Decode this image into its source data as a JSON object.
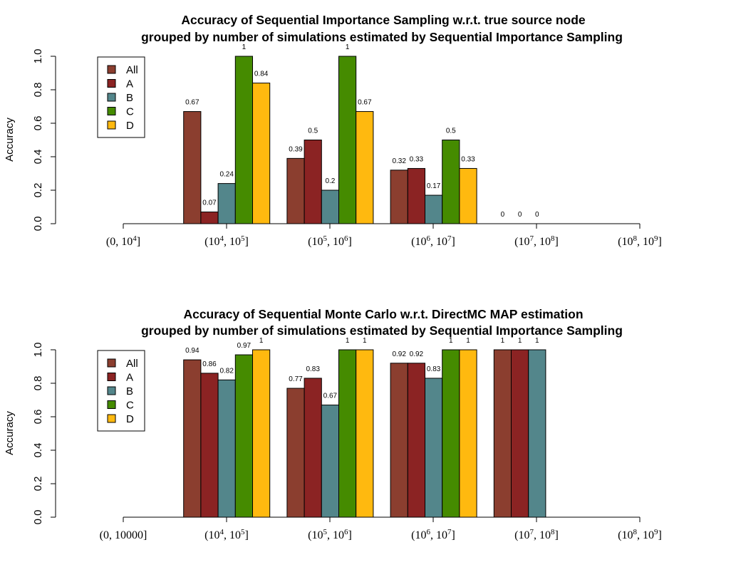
{
  "colors": {
    "All": "#8B3E2F",
    "A": "#8B2323",
    "B": "#53868B",
    "C": "#458B00",
    "D": "#FFB90F"
  },
  "chart_data": [
    {
      "type": "bar",
      "title_line1": "Accuracy of Sequential Importance Sampling w.r.t. true source node",
      "title_line2": "grouped by number of simulations estimated by Sequential Importance Sampling",
      "ylabel": "Accuracy",
      "ylim": [
        0,
        1
      ],
      "yticks": [
        "0.0",
        "0.2",
        "0.4",
        "0.6",
        "0.8",
        "1.0"
      ],
      "categories": [
        {
          "base": "(0, 10",
          "sup1": "4",
          "end": "]",
          "plain": ""
        },
        {
          "base": "(10",
          "sup1": "4",
          "mid": ", 10",
          "sup2": "5",
          "end": "]"
        },
        {
          "base": "(10",
          "sup1": "5",
          "mid": ", 10",
          "sup2": "6",
          "end": "]"
        },
        {
          "base": "(10",
          "sup1": "6",
          "mid": ", 10",
          "sup2": "7",
          "end": "]"
        },
        {
          "base": "(10",
          "sup1": "7",
          "mid": ", 10",
          "sup2": "8",
          "end": "]"
        },
        {
          "base": "(10",
          "sup1": "8",
          "mid": ", 10",
          "sup2": "9",
          "end": "]"
        }
      ],
      "legend_position": "top-left",
      "series": [
        {
          "name": "All",
          "values": [
            null,
            0.67,
            0.39,
            0.32,
            0,
            null
          ],
          "labels": [
            "",
            "0.67",
            "0.39",
            "0.32",
            "0",
            ""
          ]
        },
        {
          "name": "A",
          "values": [
            null,
            0.07,
            0.5,
            0.33,
            0,
            null
          ],
          "labels": [
            "",
            "0.07",
            "0.5",
            "0.33",
            "0",
            ""
          ]
        },
        {
          "name": "B",
          "values": [
            null,
            0.24,
            0.2,
            0.17,
            0,
            null
          ],
          "labels": [
            "",
            "0.24",
            "0.2",
            "0.17",
            "0",
            ""
          ]
        },
        {
          "name": "C",
          "values": [
            null,
            1,
            1,
            0.5,
            null,
            null
          ],
          "labels": [
            "",
            "1",
            "1",
            "0.5",
            "",
            ""
          ]
        },
        {
          "name": "D",
          "values": [
            null,
            0.84,
            0.67,
            0.33,
            null,
            null
          ],
          "labels": [
            "",
            "0.84",
            "0.67",
            "0.33",
            "",
            ""
          ]
        }
      ]
    },
    {
      "type": "bar",
      "title_line1": "Accuracy of Sequential Monte Carlo w.r.t. DirectMC MAP estimation",
      "title_line2": "grouped by number of simulations estimated by Sequential Importance Sampling",
      "ylabel": "Accuracy",
      "ylim": [
        0,
        1
      ],
      "yticks": [
        "0.0",
        "0.2",
        "0.4",
        "0.6",
        "0.8",
        "1.0"
      ],
      "categories": [
        {
          "plain": "(0, 10000]"
        },
        {
          "base": "(10",
          "sup1": "4",
          "mid": ", 10",
          "sup2": "5",
          "end": "]"
        },
        {
          "base": "(10",
          "sup1": "5",
          "mid": ", 10",
          "sup2": "6",
          "end": "]"
        },
        {
          "base": "(10",
          "sup1": "6",
          "mid": ", 10",
          "sup2": "7",
          "end": "]"
        },
        {
          "base": "(10",
          "sup1": "7",
          "mid": ", 10",
          "sup2": "8",
          "end": "]"
        },
        {
          "base": "(10",
          "sup1": "8",
          "mid": ", 10",
          "sup2": "9",
          "end": "]"
        }
      ],
      "legend_position": "top-left",
      "series": [
        {
          "name": "All",
          "values": [
            null,
            0.94,
            0.77,
            0.92,
            1,
            null
          ],
          "labels": [
            "",
            "0.94",
            "0.77",
            "0.92",
            "1",
            ""
          ]
        },
        {
          "name": "A",
          "values": [
            null,
            0.86,
            0.83,
            0.92,
            1,
            null
          ],
          "labels": [
            "",
            "0.86",
            "0.83",
            "0.92",
            "1",
            ""
          ]
        },
        {
          "name": "B",
          "values": [
            null,
            0.82,
            0.67,
            0.83,
            1,
            null
          ],
          "labels": [
            "",
            "0.82",
            "0.67",
            "0.83",
            "1",
            ""
          ]
        },
        {
          "name": "C",
          "values": [
            null,
            0.97,
            1,
            1,
            null,
            null
          ],
          "labels": [
            "",
            "0.97",
            "1",
            "1",
            "",
            ""
          ]
        },
        {
          "name": "D",
          "values": [
            null,
            1,
            1,
            1,
            null,
            null
          ],
          "labels": [
            "",
            "1",
            "1",
            "1",
            "",
            ""
          ]
        }
      ]
    }
  ]
}
